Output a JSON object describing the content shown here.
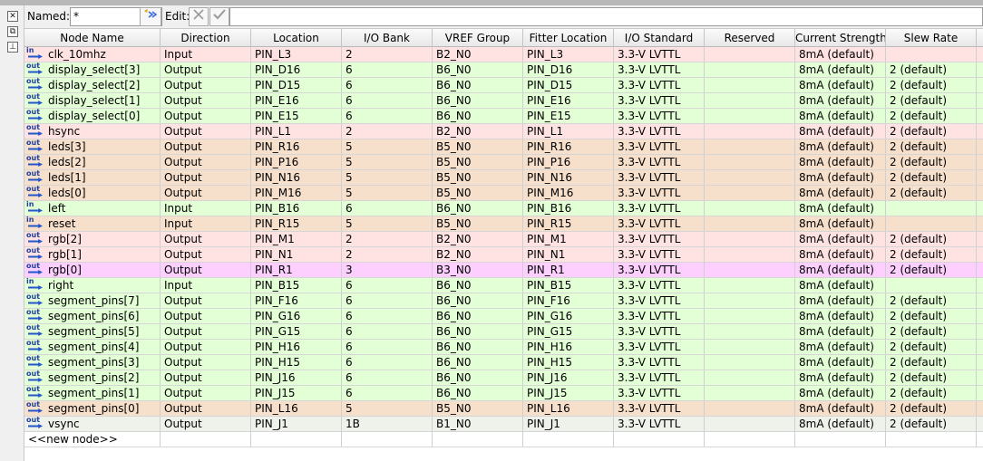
{
  "toolbar": {
    "named_label": "Named:",
    "named_value": "*",
    "edit_label": "Edit:",
    "named_dropdown_icon": "chevron-down-icon",
    "wizard_icon": "wizard-icon",
    "cancel_icon": "x-icon",
    "accept_icon": "check-icon"
  },
  "left_strip": {
    "icons": [
      "close-icon",
      "float-icon",
      "pin-icon"
    ]
  },
  "columns": [
    "Node Name",
    "Direction",
    "Location",
    "I/O Bank",
    "VREF Group",
    "Fitter Location",
    "I/O Standard",
    "Reserved",
    "Current Strength",
    "Slew Rate"
  ],
  "colors": {
    "pink": "#ffe3e3",
    "green": "#e3ffd6",
    "orange": "#f6dfcb",
    "magenta": "#fccfff",
    "gray": "#eef2ea"
  },
  "rows": [
    {
      "name": "clk_10mhz",
      "dir": "Input",
      "loc": "PIN_L3",
      "bank": "2",
      "vref": "B2_N0",
      "fitter": "PIN_L3",
      "std": "3.3-V LVTTL",
      "reserved": "",
      "current": "8mA (default)",
      "slew": "",
      "color": "pink"
    },
    {
      "name": "display_select[3]",
      "dir": "Output",
      "loc": "PIN_D16",
      "bank": "6",
      "vref": "B6_N0",
      "fitter": "PIN_D16",
      "std": "3.3-V LVTTL",
      "reserved": "",
      "current": "8mA (default)",
      "slew": "2 (default)",
      "color": "green"
    },
    {
      "name": "display_select[2]",
      "dir": "Output",
      "loc": "PIN_D15",
      "bank": "6",
      "vref": "B6_N0",
      "fitter": "PIN_D15",
      "std": "3.3-V LVTTL",
      "reserved": "",
      "current": "8mA (default)",
      "slew": "2 (default)",
      "color": "green"
    },
    {
      "name": "display_select[1]",
      "dir": "Output",
      "loc": "PIN_E16",
      "bank": "6",
      "vref": "B6_N0",
      "fitter": "PIN_E16",
      "std": "3.3-V LVTTL",
      "reserved": "",
      "current": "8mA (default)",
      "slew": "2 (default)",
      "color": "green"
    },
    {
      "name": "display_select[0]",
      "dir": "Output",
      "loc": "PIN_E15",
      "bank": "6",
      "vref": "B6_N0",
      "fitter": "PIN_E15",
      "std": "3.3-V LVTTL",
      "reserved": "",
      "current": "8mA (default)",
      "slew": "2 (default)",
      "color": "green"
    },
    {
      "name": "hsync",
      "dir": "Output",
      "loc": "PIN_L1",
      "bank": "2",
      "vref": "B2_N0",
      "fitter": "PIN_L1",
      "std": "3.3-V LVTTL",
      "reserved": "",
      "current": "8mA (default)",
      "slew": "2 (default)",
      "color": "pink"
    },
    {
      "name": "leds[3]",
      "dir": "Output",
      "loc": "PIN_R16",
      "bank": "5",
      "vref": "B5_N0",
      "fitter": "PIN_R16",
      "std": "3.3-V LVTTL",
      "reserved": "",
      "current": "8mA (default)",
      "slew": "2 (default)",
      "color": "orange"
    },
    {
      "name": "leds[2]",
      "dir": "Output",
      "loc": "PIN_P16",
      "bank": "5",
      "vref": "B5_N0",
      "fitter": "PIN_P16",
      "std": "3.3-V LVTTL",
      "reserved": "",
      "current": "8mA (default)",
      "slew": "2 (default)",
      "color": "orange"
    },
    {
      "name": "leds[1]",
      "dir": "Output",
      "loc": "PIN_N16",
      "bank": "5",
      "vref": "B5_N0",
      "fitter": "PIN_N16",
      "std": "3.3-V LVTTL",
      "reserved": "",
      "current": "8mA (default)",
      "slew": "2 (default)",
      "color": "orange"
    },
    {
      "name": "leds[0]",
      "dir": "Output",
      "loc": "PIN_M16",
      "bank": "5",
      "vref": "B5_N0",
      "fitter": "PIN_M16",
      "std": "3.3-V LVTTL",
      "reserved": "",
      "current": "8mA (default)",
      "slew": "2 (default)",
      "color": "orange"
    },
    {
      "name": "left",
      "dir": "Input",
      "loc": "PIN_B16",
      "bank": "6",
      "vref": "B6_N0",
      "fitter": "PIN_B16",
      "std": "3.3-V LVTTL",
      "reserved": "",
      "current": "8mA (default)",
      "slew": "",
      "color": "green"
    },
    {
      "name": "reset",
      "dir": "Input",
      "loc": "PIN_R15",
      "bank": "5",
      "vref": "B5_N0",
      "fitter": "PIN_R15",
      "std": "3.3-V LVTTL",
      "reserved": "",
      "current": "8mA (default)",
      "slew": "",
      "color": "orange"
    },
    {
      "name": "rgb[2]",
      "dir": "Output",
      "loc": "PIN_M1",
      "bank": "2",
      "vref": "B2_N0",
      "fitter": "PIN_M1",
      "std": "3.3-V LVTTL",
      "reserved": "",
      "current": "8mA (default)",
      "slew": "2 (default)",
      "color": "pink"
    },
    {
      "name": "rgb[1]",
      "dir": "Output",
      "loc": "PIN_N1",
      "bank": "2",
      "vref": "B2_N0",
      "fitter": "PIN_N1",
      "std": "3.3-V LVTTL",
      "reserved": "",
      "current": "8mA (default)",
      "slew": "2 (default)",
      "color": "pink"
    },
    {
      "name": "rgb[0]",
      "dir": "Output",
      "loc": "PIN_R1",
      "bank": "3",
      "vref": "B3_N0",
      "fitter": "PIN_R1",
      "std": "3.3-V LVTTL",
      "reserved": "",
      "current": "8mA (default)",
      "slew": "2 (default)",
      "color": "magenta"
    },
    {
      "name": "right",
      "dir": "Input",
      "loc": "PIN_B15",
      "bank": "6",
      "vref": "B6_N0",
      "fitter": "PIN_B15",
      "std": "3.3-V LVTTL",
      "reserved": "",
      "current": "8mA (default)",
      "slew": "",
      "color": "green"
    },
    {
      "name": "segment_pins[7]",
      "dir": "Output",
      "loc": "PIN_F16",
      "bank": "6",
      "vref": "B6_N0",
      "fitter": "PIN_F16",
      "std": "3.3-V LVTTL",
      "reserved": "",
      "current": "8mA (default)",
      "slew": "2 (default)",
      "color": "green"
    },
    {
      "name": "segment_pins[6]",
      "dir": "Output",
      "loc": "PIN_G16",
      "bank": "6",
      "vref": "B6_N0",
      "fitter": "PIN_G16",
      "std": "3.3-V LVTTL",
      "reserved": "",
      "current": "8mA (default)",
      "slew": "2 (default)",
      "color": "green"
    },
    {
      "name": "segment_pins[5]",
      "dir": "Output",
      "loc": "PIN_G15",
      "bank": "6",
      "vref": "B6_N0",
      "fitter": "PIN_G15",
      "std": "3.3-V LVTTL",
      "reserved": "",
      "current": "8mA (default)",
      "slew": "2 (default)",
      "color": "green"
    },
    {
      "name": "segment_pins[4]",
      "dir": "Output",
      "loc": "PIN_H16",
      "bank": "6",
      "vref": "B6_N0",
      "fitter": "PIN_H16",
      "std": "3.3-V LVTTL",
      "reserved": "",
      "current": "8mA (default)",
      "slew": "2 (default)",
      "color": "green"
    },
    {
      "name": "segment_pins[3]",
      "dir": "Output",
      "loc": "PIN_H15",
      "bank": "6",
      "vref": "B6_N0",
      "fitter": "PIN_H15",
      "std": "3.3-V LVTTL",
      "reserved": "",
      "current": "8mA (default)",
      "slew": "2 (default)",
      "color": "green"
    },
    {
      "name": "segment_pins[2]",
      "dir": "Output",
      "loc": "PIN_J16",
      "bank": "6",
      "vref": "B6_N0",
      "fitter": "PIN_J16",
      "std": "3.3-V LVTTL",
      "reserved": "",
      "current": "8mA (default)",
      "slew": "2 (default)",
      "color": "green"
    },
    {
      "name": "segment_pins[1]",
      "dir": "Output",
      "loc": "PIN_J15",
      "bank": "6",
      "vref": "B6_N0",
      "fitter": "PIN_J15",
      "std": "3.3-V LVTTL",
      "reserved": "",
      "current": "8mA (default)",
      "slew": "2 (default)",
      "color": "green"
    },
    {
      "name": "segment_pins[0]",
      "dir": "Output",
      "loc": "PIN_L16",
      "bank": "5",
      "vref": "B5_N0",
      "fitter": "PIN_L16",
      "std": "3.3-V LVTTL",
      "reserved": "",
      "current": "8mA (default)",
      "slew": "2 (default)",
      "color": "orange"
    },
    {
      "name": "vsync",
      "dir": "Output",
      "loc": "PIN_J1",
      "bank": "1B",
      "vref": "B1_N0",
      "fitter": "PIN_J1",
      "std": "3.3-V LVTTL",
      "reserved": "",
      "current": "8mA (default)",
      "slew": "2 (default)",
      "color": "gray"
    }
  ],
  "new_node_label": "<<new node>>",
  "dir_icon_text": {
    "Input": "in",
    "Output": "out"
  }
}
